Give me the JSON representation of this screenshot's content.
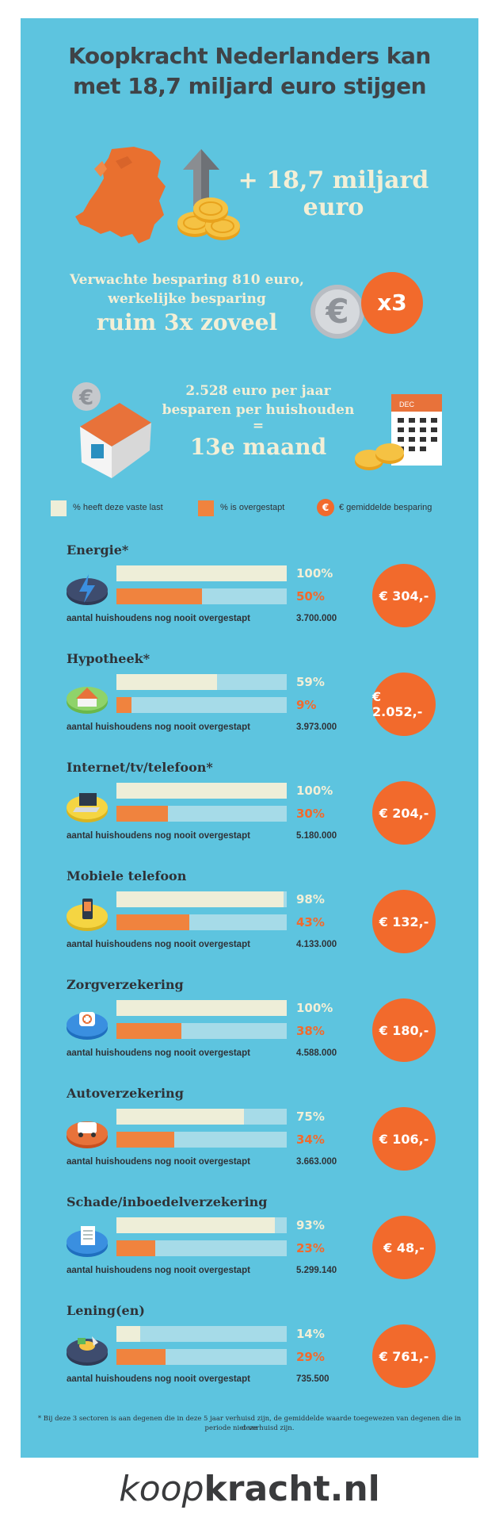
{
  "title_line1": "Koopkracht Nederlanders kan",
  "title_line2": "met 18,7 miljard euro stijgen",
  "hero": {
    "line1": "+ 18,7 miljard",
    "line2": "euro"
  },
  "savings_claim": {
    "line1": "Verwachte besparing 810 euro,",
    "line2": "werkelijke besparing",
    "line3": "ruim 3x zoveel",
    "badge": "x3"
  },
  "month": {
    "line1": "2.528 euro per jaar",
    "line2": "besparen per huishouden",
    "equals": "=",
    "line3": "13e maand",
    "calendar_label": "DEC"
  },
  "legend": {
    "has_cost": "% heeft deze vaste last",
    "switched": "% is overgestapt",
    "avg_saving_icon": "€",
    "avg_saving": "€ gemiddelde besparing"
  },
  "caption": "aantal huishoudens nog nooit overgestapt",
  "rows": [
    {
      "title": "Energie*",
      "has_pct": "100%",
      "has": 100,
      "switched_pct": "50%",
      "switched": 50,
      "count": "3.700.000",
      "saving": "€ 304,-",
      "icon": "energy-icon"
    },
    {
      "title": "Hypotheek*",
      "has_pct": "59%",
      "has": 59,
      "switched_pct": "9%",
      "switched": 9,
      "count": "3.973.000",
      "saving": "€ 2.052,-",
      "icon": "house-small-icon"
    },
    {
      "title": "Internet/tv/telefoon*",
      "has_pct": "100%",
      "has": 100,
      "switched_pct": "30%",
      "switched": 30,
      "count": "5.180.000",
      "saving": "€ 204,-",
      "icon": "laptop-icon"
    },
    {
      "title": "Mobiele telefoon",
      "has_pct": "98%",
      "has": 98,
      "switched_pct": "43%",
      "switched": 43,
      "count": "4.133.000",
      "saving": "€ 132,-",
      "icon": "phone-icon"
    },
    {
      "title": "Zorgverzekering",
      "has_pct": "100%",
      "has": 100,
      "switched_pct": "38%",
      "switched": 38,
      "count": "4.588.000",
      "saving": "€ 180,-",
      "icon": "medical-icon"
    },
    {
      "title": "Autoverzekering",
      "has_pct": "75%",
      "has": 75,
      "switched_pct": "34%",
      "switched": 34,
      "count": "3.663.000",
      "saving": "€ 106,-",
      "icon": "car-icon"
    },
    {
      "title": "Schade/inboedelverzekering",
      "has_pct": "93%",
      "has": 93,
      "switched_pct": "23%",
      "switched": 23,
      "count": "5.299.140",
      "saving": "€ 48,-",
      "icon": "document-icon"
    },
    {
      "title": "Lening(en)",
      "has_pct": "14%",
      "has": 14,
      "switched_pct": "29%",
      "switched": 29,
      "count": "735.500",
      "saving": "€ 761,-",
      "icon": "loan-icon"
    }
  ],
  "footnote_line1": "* Bij deze 3 sectoren is aan degenen die in deze 5 jaar verhuisd zijn, de gemiddelde waarde toegewezen van degenen die in deze",
  "footnote_line2": "periode niet verhuisd zijn.",
  "brand_light": "koop",
  "brand_bold": "kracht.nl",
  "colors": {
    "background": "#5dc4df",
    "accent": "#f26a2c",
    "cream": "#f3efd6",
    "dark": "#3f4347"
  }
}
